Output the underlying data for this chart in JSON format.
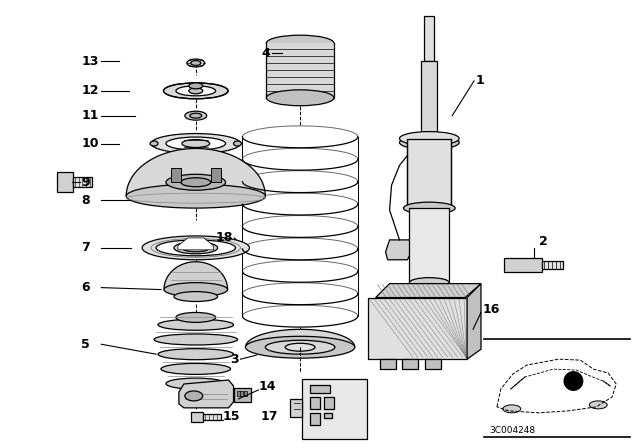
{
  "bg_color": "#ffffff",
  "fig_width": 6.4,
  "fig_height": 4.48,
  "dpi": 100,
  "diagram_code": "3C004248"
}
